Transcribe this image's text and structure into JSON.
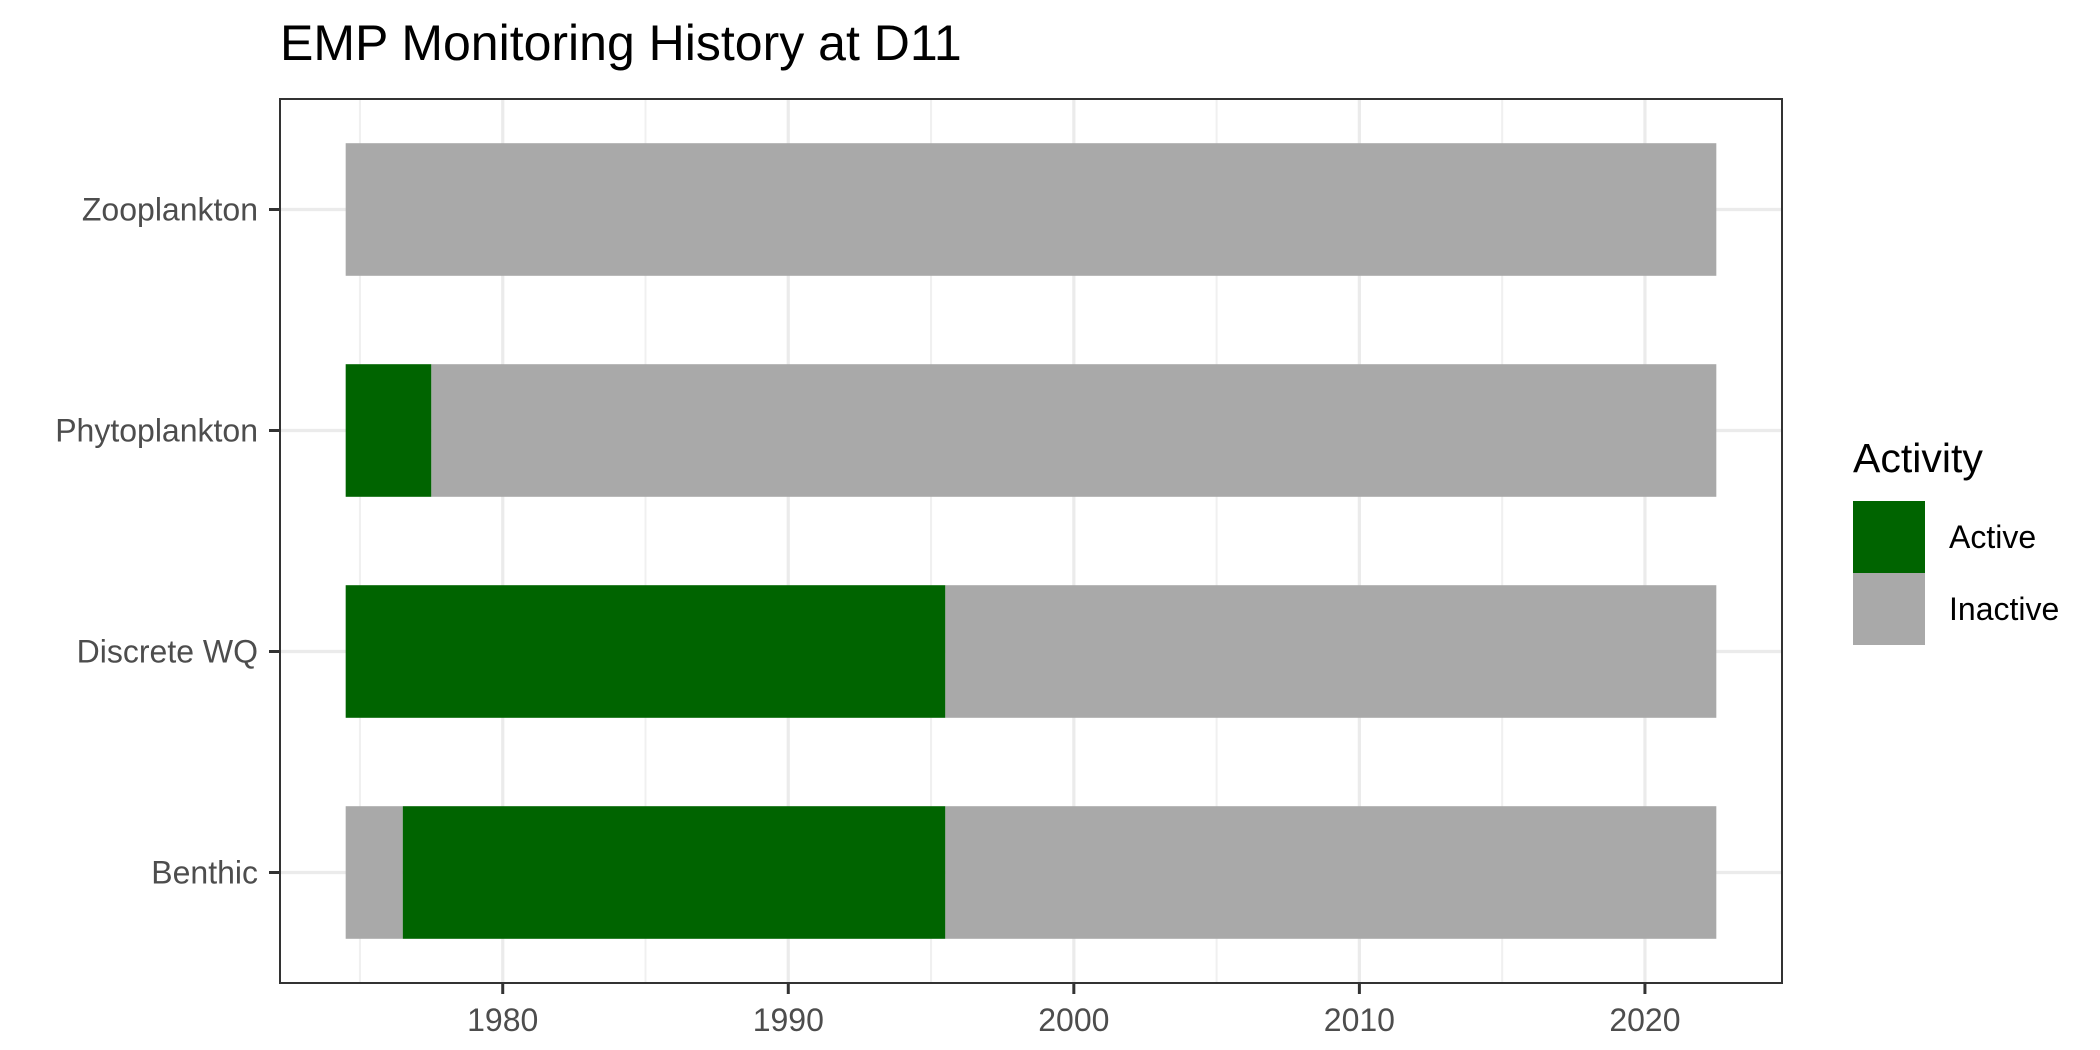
{
  "chart_data": {
    "type": "bar",
    "orientation": "horizontal",
    "stacked": true,
    "title": "EMP Monitoring History at D11",
    "xlabel": "",
    "ylabel": "",
    "xlim": [
      1972.2,
      2024.8
    ],
    "xticks": [
      1980,
      1990,
      2000,
      2010,
      2020
    ],
    "grid": true,
    "legend_position": "right",
    "categories": [
      "Zooplankton",
      "Phytoplankton",
      "Discrete WQ",
      "Benthic"
    ],
    "colors": {
      "Active": "#006400",
      "Inactive": "#a9a9a9"
    },
    "legend": {
      "title": "Activity",
      "items": [
        {
          "label": "Active",
          "color": "#006400"
        },
        {
          "label": "Inactive",
          "color": "#a9a9a9"
        }
      ]
    },
    "bars": [
      {
        "category": "Zooplankton",
        "segments": [
          {
            "activity": "Inactive",
            "start": 1974.5,
            "end": 2022.5
          }
        ]
      },
      {
        "category": "Phytoplankton",
        "segments": [
          {
            "activity": "Active",
            "start": 1974.5,
            "end": 1977.5
          },
          {
            "activity": "Inactive",
            "start": 1977.5,
            "end": 2022.5
          }
        ]
      },
      {
        "category": "Discrete WQ",
        "segments": [
          {
            "activity": "Active",
            "start": 1974.5,
            "end": 1995.5
          },
          {
            "activity": "Inactive",
            "start": 1995.5,
            "end": 2022.5
          }
        ]
      },
      {
        "category": "Benthic",
        "segments": [
          {
            "activity": "Inactive",
            "start": 1974.5,
            "end": 1976.5
          },
          {
            "activity": "Active",
            "start": 1976.5,
            "end": 1995.5
          },
          {
            "activity": "Inactive",
            "start": 1995.5,
            "end": 2022.5
          }
        ]
      }
    ]
  }
}
